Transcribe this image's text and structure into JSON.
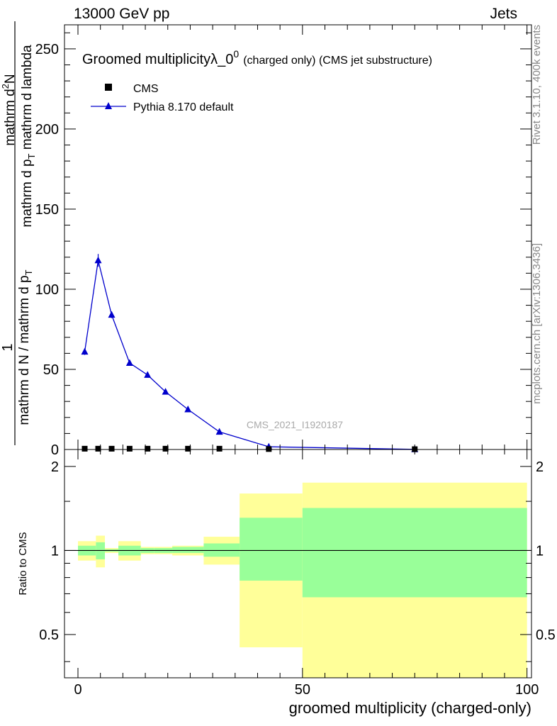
{
  "header": {
    "left": "13000 GeV pp",
    "right": "Jets"
  },
  "side": {
    "rivet": "Rivet 3.1.10,  400k events",
    "mcplots": "mcplots.cern.ch [arXiv:1306.3436]"
  },
  "watermark": "CMS_2021_I1920187",
  "colors": {
    "mc": "#0000cc",
    "band_inner": "#99ff99",
    "band_outer": "#ffff99",
    "data": "#000000"
  },
  "chart_data": {
    "type": "line",
    "title": "Groomed multiplicity",
    "title_lambda": "λ_0",
    "title_sup": "0",
    "title_tail": "(charged only) (CMS jet substructure)",
    "xlabel": "groomed multiplicity (charged-only)",
    "ylabel_num": "1",
    "ylabel_den": "mathrm d N / mathrm d p",
    "ylabel_den_sub": "T",
    "ylabel_num_line1": "mathrm d",
    "ylabel_num_sup": "2",
    "ylabel_num_line1b": "N",
    "ylabel_num_line2": "mathrm d p",
    "ylabel_num_line2_sub": "T",
    "ylabel_num_line2b": " mathrm d lambda",
    "ratio_ylabel": "Ratio to CMS",
    "xlim": [
      -3,
      101
    ],
    "ylim": [
      0,
      265
    ],
    "ratio_ylim": [
      0.35,
      2.3
    ],
    "x_ticks": [
      "0",
      "50",
      "100"
    ],
    "y_ticks": [
      "0",
      "50",
      "100",
      "150",
      "200",
      "250"
    ],
    "ratio_y_ticks": [
      "0.5",
      "1",
      "2"
    ],
    "legend": {
      "position": "top-left",
      "data": "CMS",
      "mc": "Pythia 8.170 default"
    },
    "series": [
      {
        "name": "CMS",
        "x": [
          1.5,
          4.5,
          7.5,
          11.5,
          15.5,
          19.5,
          24.5,
          31.5,
          42.5,
          75
        ],
        "values": [
          0.5,
          0.5,
          0.5,
          0.5,
          0.5,
          0.5,
          0.5,
          0.5,
          0.3,
          0.2
        ]
      },
      {
        "name": "Pythia 8.170 default",
        "x": [
          1.5,
          4.5,
          7.5,
          11.5,
          15.5,
          19.5,
          24.5,
          31.5,
          42.5,
          75
        ],
        "values": [
          61,
          118,
          84,
          54,
          46.5,
          36,
          25,
          11,
          1.7,
          0.1
        ],
        "errors": [
          2,
          4,
          2,
          1,
          1,
          1,
          1,
          0.6,
          0.3,
          0.05
        ]
      }
    ],
    "ratio_bins": [
      {
        "lo": 0,
        "hi": 4,
        "inner": [
          0.96,
          1.04
        ],
        "outer": [
          0.92,
          1.08
        ]
      },
      {
        "lo": 4,
        "hi": 6,
        "inner": [
          0.93,
          1.07
        ],
        "outer": [
          0.87,
          1.13
        ]
      },
      {
        "lo": 6,
        "hi": 9,
        "inner": [
          0.99,
          1.01
        ],
        "outer": [
          0.98,
          1.02
        ]
      },
      {
        "lo": 9,
        "hi": 14,
        "inner": [
          0.96,
          1.04
        ],
        "outer": [
          0.92,
          1.08
        ]
      },
      {
        "lo": 14,
        "hi": 17,
        "inner": [
          0.98,
          1.02
        ],
        "outer": [
          0.97,
          1.03
        ]
      },
      {
        "lo": 17,
        "hi": 21,
        "inner": [
          0.98,
          1.02
        ],
        "outer": [
          0.97,
          1.03
        ]
      },
      {
        "lo": 21,
        "hi": 28,
        "inner": [
          0.98,
          1.03
        ],
        "outer": [
          0.96,
          1.04
        ]
      },
      {
        "lo": 28,
        "hi": 36,
        "inner": [
          0.95,
          1.06
        ],
        "outer": [
          0.89,
          1.12
        ]
      },
      {
        "lo": 36,
        "hi": 50,
        "inner": [
          0.78,
          1.31
        ],
        "outer": [
          0.45,
          1.6
        ]
      },
      {
        "lo": 50,
        "hi": 100,
        "inner": [
          0.68,
          1.42
        ],
        "outer": [
          0.2,
          1.75
        ]
      }
    ]
  }
}
